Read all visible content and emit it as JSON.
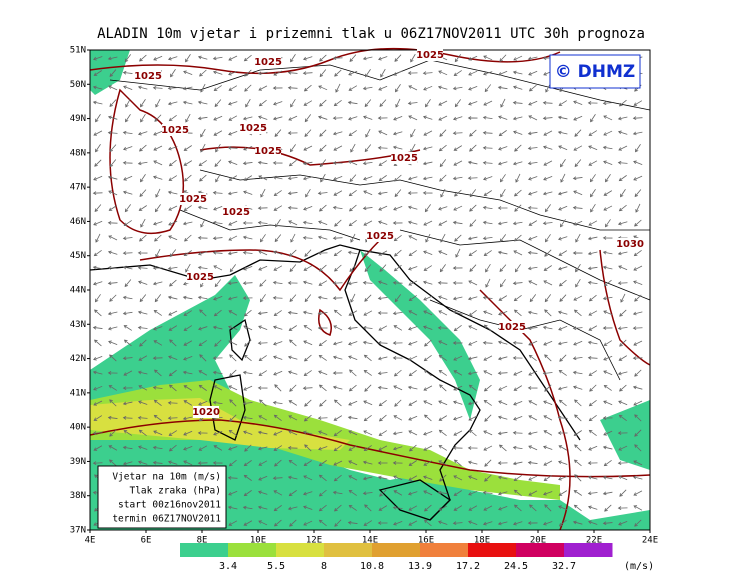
{
  "title": "ALADIN 10m vjetar i prizemni tlak u 06Z17NOV2011 UTC 30h prognoza",
  "copyright": "© DHMZ",
  "info": [
    "Vjetar na 10m (m/s)",
    "Tlak zraka (hPa)",
    "start 00z16nov2011",
    "termin 06Z17NOV2011"
  ],
  "lat_labels": [
    "51N",
    "50N",
    "49N",
    "48N",
    "47N",
    "46N",
    "45N",
    "44N",
    "43N",
    "42N",
    "41N",
    "40N",
    "39N",
    "38N",
    "37N"
  ],
  "lon_labels": [
    "4E",
    "6E",
    "8E",
    "10E",
    "12E",
    "14E",
    "16E",
    "18E",
    "20E",
    "22E",
    "24E"
  ],
  "isobars": [
    "1025",
    "1025",
    "1025",
    "1025",
    "1025",
    "1025",
    "1025",
    "1025",
    "1025",
    "1025",
    "1030",
    "1025",
    "1025",
    "1020"
  ],
  "colorbar": {
    "values": [
      3.4,
      5.5,
      8,
      10.8,
      13.9,
      17.2,
      24.5,
      32.7
    ],
    "colors": [
      "#3ccf8e",
      "#9be03c",
      "#d8e040",
      "#e0c040",
      "#e0a030",
      "#f0803c",
      "#e81010",
      "#d00060",
      "#a020d0"
    ],
    "unit": "(m/s)"
  }
}
